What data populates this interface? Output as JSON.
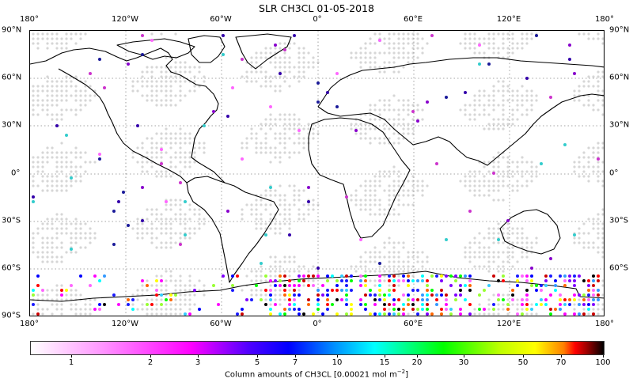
{
  "chart_data": {
    "type": "scatter",
    "title": "SLR CH3CL 01-05-2018",
    "projection": "PlateCarree (global)",
    "x_ticks": [
      "180°",
      "120°W",
      "60°W",
      "0°",
      "60°E",
      "120°E",
      "180°"
    ],
    "y_ticks": [
      "90°N",
      "60°N",
      "30°N",
      "0°",
      "30°S",
      "60°S",
      "90°S"
    ],
    "grid": true,
    "colorbar": {
      "label": "Column amounts of CH3CL [0.00021 mol m",
      "label_exponent": "−2",
      "label_suffix": "]",
      "scale": "log",
      "range": [
        0.6,
        100
      ],
      "ticks": [
        "1",
        "2",
        "3",
        "5",
        "7",
        "10",
        "15",
        "20",
        "30",
        "50",
        "70",
        "100"
      ],
      "colormap": [
        "#ffffff",
        "#ff00ff",
        "#0000ff",
        "#00ffff",
        "#00ff00",
        "#ffff00",
        "#ff0000",
        "#000000"
      ]
    },
    "description": "Global field of view grid shown as light gray dots; valid retrievals shown as colored dots, densest over Antarctica and Southern Ocean (70°S–90°S), sparse elsewhere"
  },
  "title": "SLR CH3CL 01-05-2018"
}
